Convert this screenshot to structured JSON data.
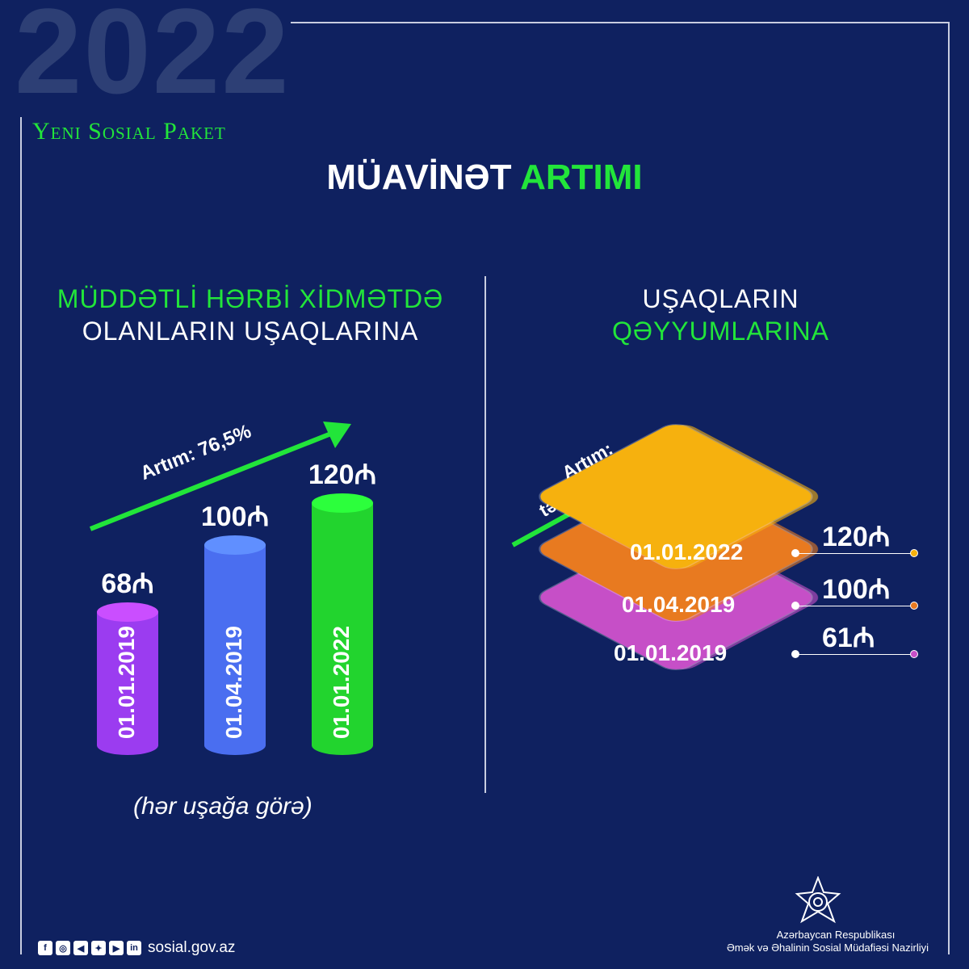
{
  "header": {
    "year": "2022",
    "brand": "Yeni Sosial Paket"
  },
  "title": {
    "part1": "MÜAVİNƏT",
    "part2": "ARTIMI"
  },
  "left": {
    "heading1": "MÜDDƏTLİ HƏRBİ XİDMƏTDƏ",
    "heading2": "OLANLARIN UŞAQLARINA",
    "growth": "Artım: 76,5%",
    "note": "(hər uşağa görə)"
  },
  "right": {
    "heading1": "UŞAQLARIN",
    "heading2": "QƏYYUMLARINA",
    "growth1": "Artım:",
    "growth2": "təqribən 2 dəfə"
  },
  "chart_data": [
    {
      "type": "bar",
      "categories": [
        "01.01.2019",
        "01.04.2019",
        "01.01.2022"
      ],
      "values": [
        68,
        100,
        120
      ],
      "labels": [
        "68₼",
        "100₼",
        "120₼"
      ],
      "unit": "₼",
      "colors": [
        "#9b3cf0",
        "#4a6ef0",
        "#22d42e"
      ]
    },
    {
      "type": "bar",
      "categories": [
        "01.01.2019",
        "01.04.2019",
        "01.01.2022"
      ],
      "values": [
        61,
        100,
        120
      ],
      "labels": [
        "61₼",
        "100₼",
        "120₼"
      ],
      "unit": "₼",
      "colors": [
        "#c64fc7",
        "#e87a20",
        "#f6b10e"
      ]
    }
  ],
  "footer": {
    "site": "sosial.gov.az",
    "org1": "Azərbaycan Respublikası",
    "org2": "Əmək və Əhalinin Sosial Müdafiəsi Nazirliyi",
    "social": [
      "f",
      "◎",
      "◀",
      "✦",
      "▶",
      "in"
    ]
  }
}
